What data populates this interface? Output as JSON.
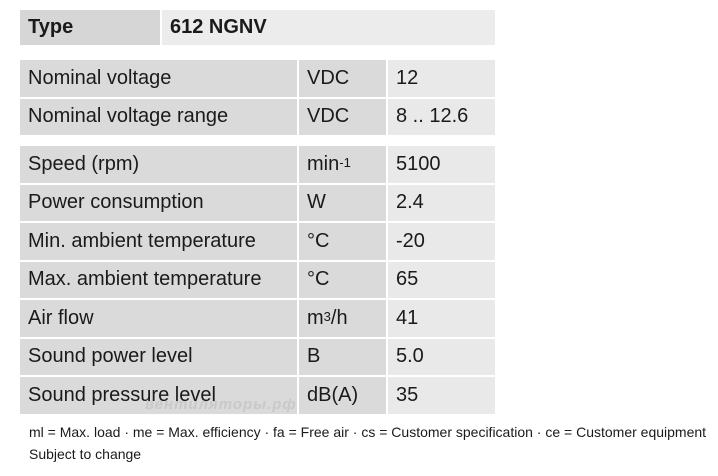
{
  "header": {
    "label": "Type",
    "value": "612 NGNV"
  },
  "groups": [
    {
      "rows": [
        {
          "name": "Nominal voltage",
          "unit": {
            "base": "VDC"
          },
          "value": "12"
        },
        {
          "name": "Nominal voltage range",
          "unit": {
            "base": "VDC"
          },
          "value": "8 .. 12.6"
        }
      ]
    },
    {
      "rows": [
        {
          "name": "Speed (rpm)",
          "unit": {
            "base": "min",
            "sup": "-1"
          },
          "value": "5100"
        },
        {
          "name": "Power consumption",
          "unit": {
            "base": "W"
          },
          "value": "2.4"
        },
        {
          "name": "Min. ambient temperature",
          "unit": {
            "base": "°C"
          },
          "value": "-20"
        },
        {
          "name": "Max. ambient temperature",
          "unit": {
            "base": "°C"
          },
          "value": "65"
        },
        {
          "name": "Air flow",
          "unit": {
            "base": "m",
            "sup": "3",
            "after": "/h"
          },
          "value": "41"
        },
        {
          "name": "Sound power level",
          "unit": {
            "base": "B"
          },
          "value": "5.0"
        },
        {
          "name": "Sound pressure level",
          "unit": {
            "base": "dB(A)"
          },
          "value": "35"
        }
      ]
    }
  ],
  "watermark": "вентиляторы.рф",
  "footnote": "ml = Max. load · me = Max. efficiency · fa = Free air · cs = Customer specification · ce = Customer equipment",
  "note": "Subject to change"
}
